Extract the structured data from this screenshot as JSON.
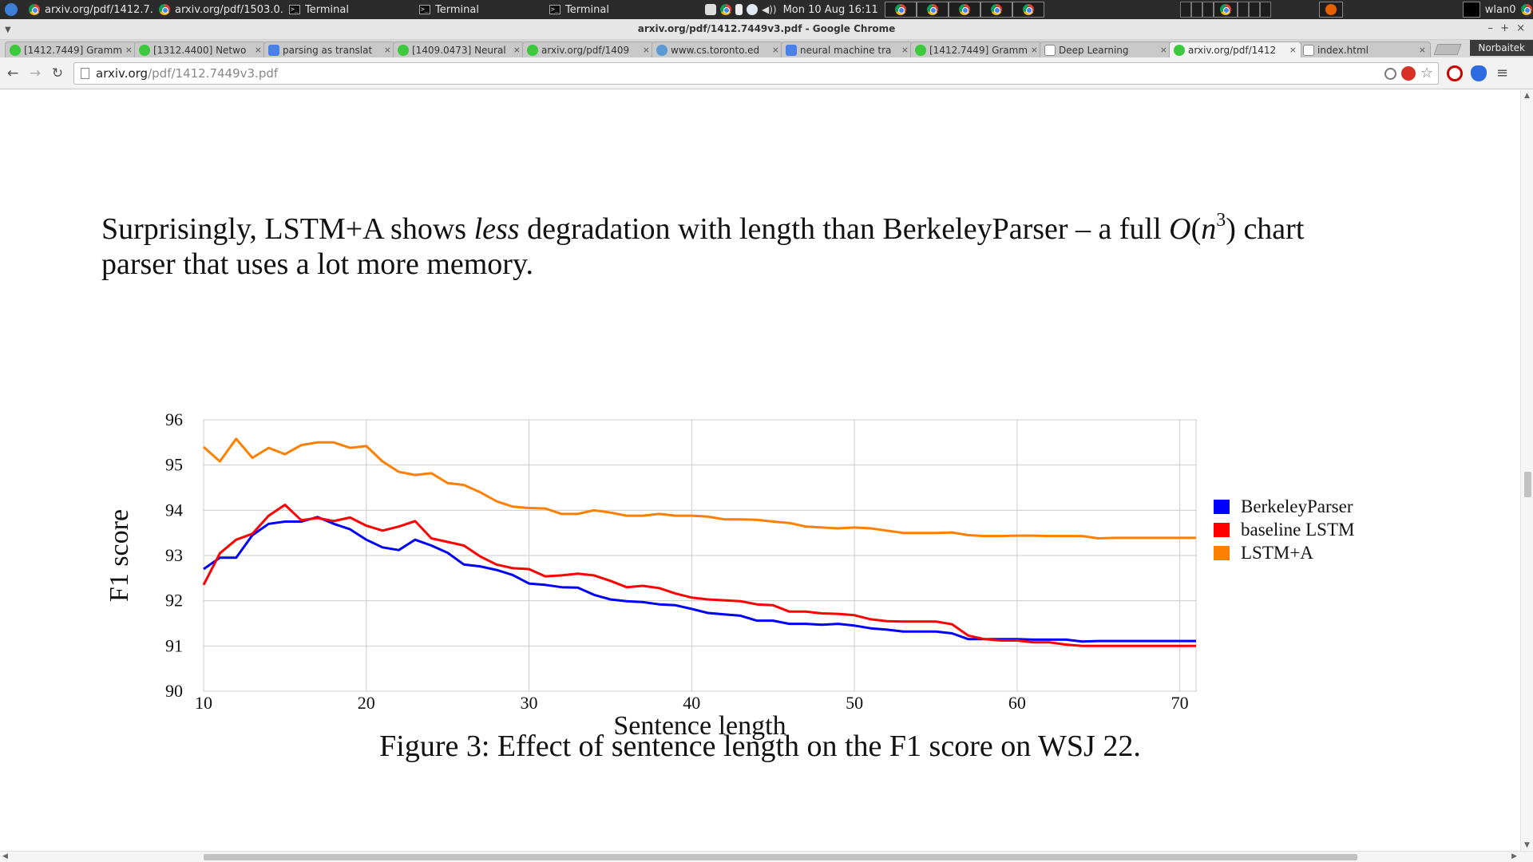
{
  "os": {
    "tasks": [
      {
        "label": "arxiv.org/pdf/1412.7...",
        "icon": "chrome-icon"
      },
      {
        "label": "arxiv.org/pdf/1503.0...",
        "icon": "chrome-icon"
      },
      {
        "label": "Terminal",
        "icon": "terminal-icon"
      },
      {
        "label": "Terminal",
        "icon": "terminal-icon"
      },
      {
        "label": "Terminal",
        "icon": "terminal-icon"
      }
    ],
    "clock": "Mon 10 Aug 16:11",
    "network": "wlan0"
  },
  "window": {
    "title": "arxiv.org/pdf/1412.7449v3.pdf - Google Chrome",
    "minimize": "–",
    "maximize": "+",
    "close": "×"
  },
  "tabs": [
    {
      "label": "[1412.7449] Gramm",
      "fav": "smile"
    },
    {
      "label": "[1312.4400] Netwo",
      "fav": "smile"
    },
    {
      "label": "parsing as translat",
      "fav": "g"
    },
    {
      "label": "[1409.0473] Neural",
      "fav": "smile"
    },
    {
      "label": "arxiv.org/pdf/1409",
      "fav": "smile"
    },
    {
      "label": "www.cs.toronto.ed",
      "fav": "web"
    },
    {
      "label": "neural machine tra",
      "fav": "g"
    },
    {
      "label": "[1412.7449] Gramm",
      "fav": "smile"
    },
    {
      "label": "Deep Learning",
      "fav": "doc"
    },
    {
      "label": "arxiv.org/pdf/1412",
      "fav": "smile",
      "active": true
    },
    {
      "label": "index.html",
      "fav": "doc"
    }
  ],
  "tab_close": "×",
  "profile": "Norbaitek",
  "toolbar": {
    "back": "←",
    "forward": "→",
    "reload": "↻",
    "url_host": "arxiv.org",
    "url_path": "/pdf/1412.7449v3.pdf",
    "menu": "≡"
  },
  "paper": {
    "para_1": "Surprisingly, LSTM+A shows ",
    "para_em": "less",
    "para_2": " degradation with length than BerkeleyParser – a full ",
    "math_O": "O",
    "math_open": "(",
    "math_n": "n",
    "math_exp": "3",
    "math_close": ")",
    "para_3": " chart parser that uses a lot more memory.",
    "caption": "Figure 3: Effect of sentence length on the F1 score on WSJ 22."
  },
  "chart_data": {
    "type": "line",
    "title": "",
    "xlabel": "Sentence length",
    "ylabel": "F1 score",
    "xlim": [
      10,
      71
    ],
    "ylim": [
      90,
      96
    ],
    "xticks": [
      10,
      20,
      30,
      40,
      50,
      60,
      70
    ],
    "yticks": [
      90,
      91,
      92,
      93,
      94,
      95,
      96
    ],
    "grid": true,
    "legend_position": "right",
    "series": [
      {
        "name": "BerkeleyParser",
        "color": "#0000ff",
        "x": [
          10,
          11,
          12,
          13,
          14,
          15,
          16,
          17,
          18,
          19,
          20,
          21,
          22,
          23,
          24,
          25,
          26,
          27,
          28,
          29,
          30,
          31,
          32,
          33,
          34,
          35,
          36,
          37,
          38,
          39,
          40,
          41,
          42,
          43,
          44,
          45,
          46,
          47,
          48,
          49,
          50,
          51,
          52,
          53,
          54,
          55,
          56,
          57,
          58,
          59,
          60,
          61,
          62,
          63,
          64,
          65,
          66,
          67,
          68,
          69,
          70,
          71
        ],
        "y": [
          92.7,
          92.95,
          92.95,
          93.45,
          93.7,
          93.75,
          93.75,
          93.85,
          93.7,
          93.58,
          93.35,
          93.18,
          93.12,
          93.35,
          93.22,
          93.06,
          92.8,
          92.76,
          92.68,
          92.57,
          92.38,
          92.35,
          92.3,
          92.29,
          92.13,
          92.03,
          91.99,
          91.97,
          91.92,
          91.9,
          91.82,
          91.73,
          91.7,
          91.67,
          91.56,
          91.56,
          91.49,
          91.49,
          91.47,
          91.49,
          91.45,
          91.39,
          91.36,
          91.32,
          91.32,
          91.32,
          91.28,
          91.15,
          91.15,
          91.15,
          91.15,
          91.14,
          91.14,
          91.14,
          91.1,
          91.11,
          91.11,
          91.11,
          91.11,
          91.11,
          91.11,
          91.11
        ]
      },
      {
        "name": "baseline LSTM",
        "color": "#ff0000",
        "x": [
          10,
          11,
          12,
          13,
          14,
          15,
          16,
          17,
          18,
          19,
          20,
          21,
          22,
          23,
          24,
          25,
          26,
          27,
          28,
          29,
          30,
          31,
          32,
          33,
          34,
          35,
          36,
          37,
          38,
          39,
          40,
          41,
          42,
          43,
          44,
          45,
          46,
          47,
          48,
          49,
          50,
          51,
          52,
          53,
          54,
          55,
          56,
          57,
          58,
          59,
          60,
          61,
          62,
          63,
          64,
          65,
          66,
          67,
          68,
          69,
          70,
          71
        ],
        "y": [
          92.35,
          93.05,
          93.35,
          93.48,
          93.88,
          94.12,
          93.78,
          93.83,
          93.76,
          93.84,
          93.66,
          93.55,
          93.64,
          93.76,
          93.38,
          93.3,
          93.22,
          92.98,
          92.8,
          92.72,
          92.7,
          92.54,
          92.56,
          92.6,
          92.56,
          92.44,
          92.3,
          92.33,
          92.28,
          92.16,
          92.07,
          92.03,
          92.01,
          91.99,
          91.92,
          91.9,
          91.76,
          91.76,
          91.72,
          91.71,
          91.68,
          91.59,
          91.55,
          91.54,
          91.54,
          91.54,
          91.48,
          91.23,
          91.15,
          91.12,
          91.12,
          91.08,
          91.08,
          91.03,
          91.0,
          91.0,
          91.0,
          91.0,
          91.0,
          91.0,
          91.0,
          91.0
        ]
      },
      {
        "name": "LSTM+A",
        "color": "#ff8000",
        "x": [
          10,
          11,
          12,
          13,
          14,
          15,
          16,
          17,
          18,
          19,
          20,
          21,
          22,
          23,
          24,
          25,
          26,
          27,
          28,
          29,
          30,
          31,
          32,
          33,
          34,
          35,
          36,
          37,
          38,
          39,
          40,
          41,
          42,
          43,
          44,
          45,
          46,
          47,
          48,
          49,
          50,
          51,
          52,
          53,
          54,
          55,
          56,
          57,
          58,
          59,
          60,
          61,
          62,
          63,
          64,
          65,
          66,
          67,
          68,
          69,
          70,
          71
        ],
        "y": [
          95.4,
          95.08,
          95.58,
          95.16,
          95.38,
          95.24,
          95.44,
          95.5,
          95.5,
          95.38,
          95.42,
          95.08,
          94.85,
          94.78,
          94.82,
          94.6,
          94.56,
          94.4,
          94.2,
          94.08,
          94.05,
          94.04,
          93.92,
          93.92,
          94.0,
          93.95,
          93.88,
          93.88,
          93.92,
          93.88,
          93.88,
          93.86,
          93.8,
          93.8,
          93.79,
          93.75,
          93.72,
          93.64,
          93.62,
          93.6,
          93.62,
          93.6,
          93.55,
          93.5,
          93.5,
          93.5,
          93.51,
          93.45,
          93.43,
          93.43,
          93.44,
          93.44,
          93.43,
          93.43,
          93.43,
          93.38,
          93.39,
          93.39,
          93.39,
          93.39,
          93.39,
          93.39
        ]
      }
    ]
  }
}
